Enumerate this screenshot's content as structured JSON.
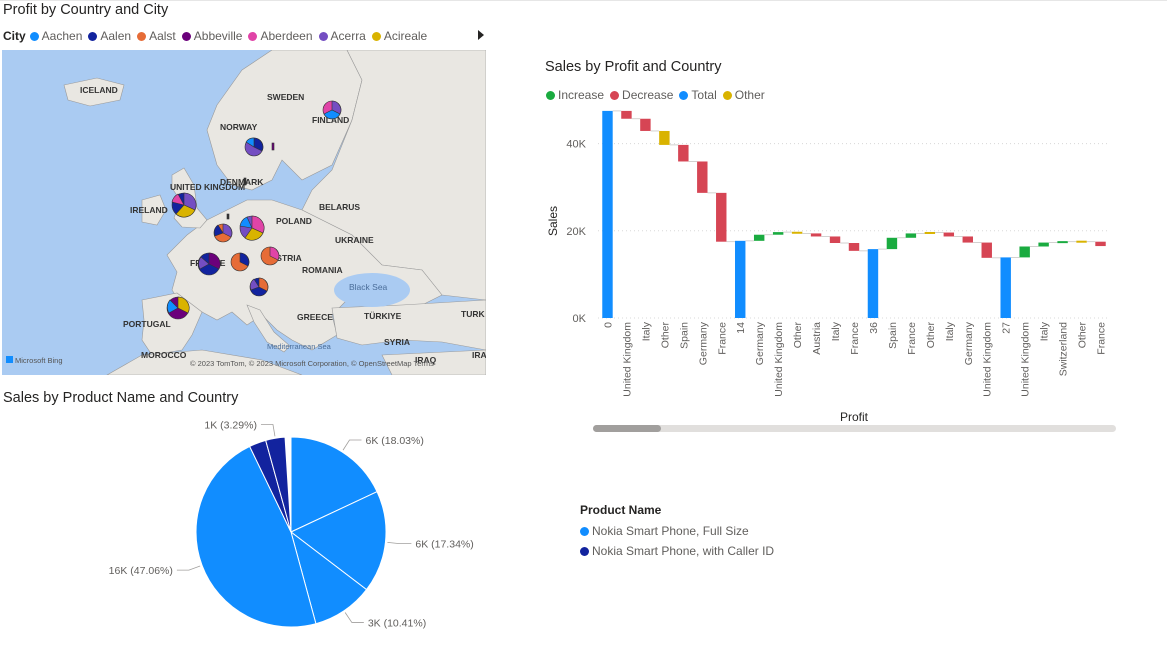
{
  "map": {
    "title": "Profit by Country and City",
    "legend_title": "City",
    "legend_items": [
      {
        "label": "Aachen",
        "color": "#118DFF"
      },
      {
        "label": "Aalen",
        "color": "#12239E"
      },
      {
        "label": "Aalst",
        "color": "#E66C37"
      },
      {
        "label": "Abbeville",
        "color": "#6B007B"
      },
      {
        "label": "Aberdeen",
        "color": "#E044A7"
      },
      {
        "label": "Acerra",
        "color": "#744EC2"
      },
      {
        "label": "Acireale",
        "color": "#D9B300"
      }
    ],
    "place_labels": [
      "ICELAND",
      "SWEDEN",
      "FINLAND",
      "NORWAY",
      "DENMARK",
      "UNITED KINGDOM",
      "IRELAND",
      "POLAND",
      "BELARUS",
      "UKRAINE",
      "FRANCE",
      "AUSTRIA",
      "ROMANIA",
      "Black Sea",
      "PORTUGAL",
      "GREECE",
      "TÜRKIYE",
      "TURK",
      "SYRIA",
      "MOROCCO",
      "IRAQ",
      "IRA",
      "Mediterranean Sea"
    ],
    "attribution": "© 2023 TomTom, © 2023 Microsoft Corporation, © OpenStreetMap  Terms",
    "logo_text": "Microsoft Bing"
  },
  "waterfall": {
    "title": "Sales by Profit and Country",
    "legend": [
      {
        "label": "Increase",
        "color": "#1AAB40"
      },
      {
        "label": "Decrease",
        "color": "#D64554"
      },
      {
        "label": "Total",
        "color": "#118DFF"
      },
      {
        "label": "Other",
        "color": "#D9B300"
      }
    ]
  },
  "chart_data": [
    {
      "type": "waterfall",
      "title": "Sales by Profit and Country",
      "xlabel": "Profit",
      "ylabel": "Sales",
      "ylim": [
        0,
        50000
      ],
      "yticks": [
        0,
        20000,
        40000
      ],
      "ytick_labels": [
        "0K",
        "20K",
        "40K"
      ],
      "grid": true,
      "legend_position": "top-left",
      "categories": [
        "0",
        "United Kingdom",
        "Italy",
        "Other",
        "Spain",
        "Germany",
        "France",
        "14",
        "Germany",
        "United Kingdom",
        "Other",
        "Austria",
        "Italy",
        "France",
        "36",
        "Spain",
        "France",
        "Other",
        "Italy",
        "Germany",
        "United Kingdom",
        "27",
        "United Kingdom",
        "Italy",
        "Switzerland",
        "Other",
        "France"
      ],
      "kinds": [
        "total",
        "decrease",
        "decrease",
        "other",
        "decrease",
        "decrease",
        "decrease",
        "total",
        "increase",
        "increase",
        "other",
        "decrease",
        "decrease",
        "decrease",
        "total",
        "increase",
        "increase",
        "other",
        "decrease",
        "decrease",
        "decrease",
        "total",
        "increase",
        "increase",
        "increase",
        "other",
        "decrease"
      ],
      "values": [
        47500,
        -1800,
        -2800,
        -3200,
        -3800,
        -7200,
        -11200,
        17700,
        1400,
        600,
        -300,
        -700,
        -1500,
        -1800,
        15800,
        2600,
        1000,
        200,
        -900,
        -1400,
        -3500,
        13900,
        2500,
        900,
        200,
        0,
        -1000
      ]
    },
    {
      "type": "pie",
      "title": "Sales by Product Name and Country",
      "legend_title": "Product Name",
      "series": [
        {
          "name": "Nokia Smart Phone, Full Size",
          "color": "#118DFF"
        },
        {
          "name": "Nokia Smart Phone, with Caller ID",
          "color": "#12239E"
        }
      ],
      "slices": [
        {
          "label": "6K (18.03%)",
          "percent": 18.03,
          "series": 0
        },
        {
          "label": "6K (17.34%)",
          "percent": 17.34,
          "series": 0
        },
        {
          "label": "3K (10.41%)",
          "percent": 10.41,
          "series": 0
        },
        {
          "label": "16K (47.06%)",
          "percent": 47.06,
          "series": 0
        },
        {
          "label": "",
          "percent": 2.87,
          "series": 1
        },
        {
          "label": "1K (3.29%)",
          "percent": 3.29,
          "series": 1
        }
      ]
    }
  ]
}
